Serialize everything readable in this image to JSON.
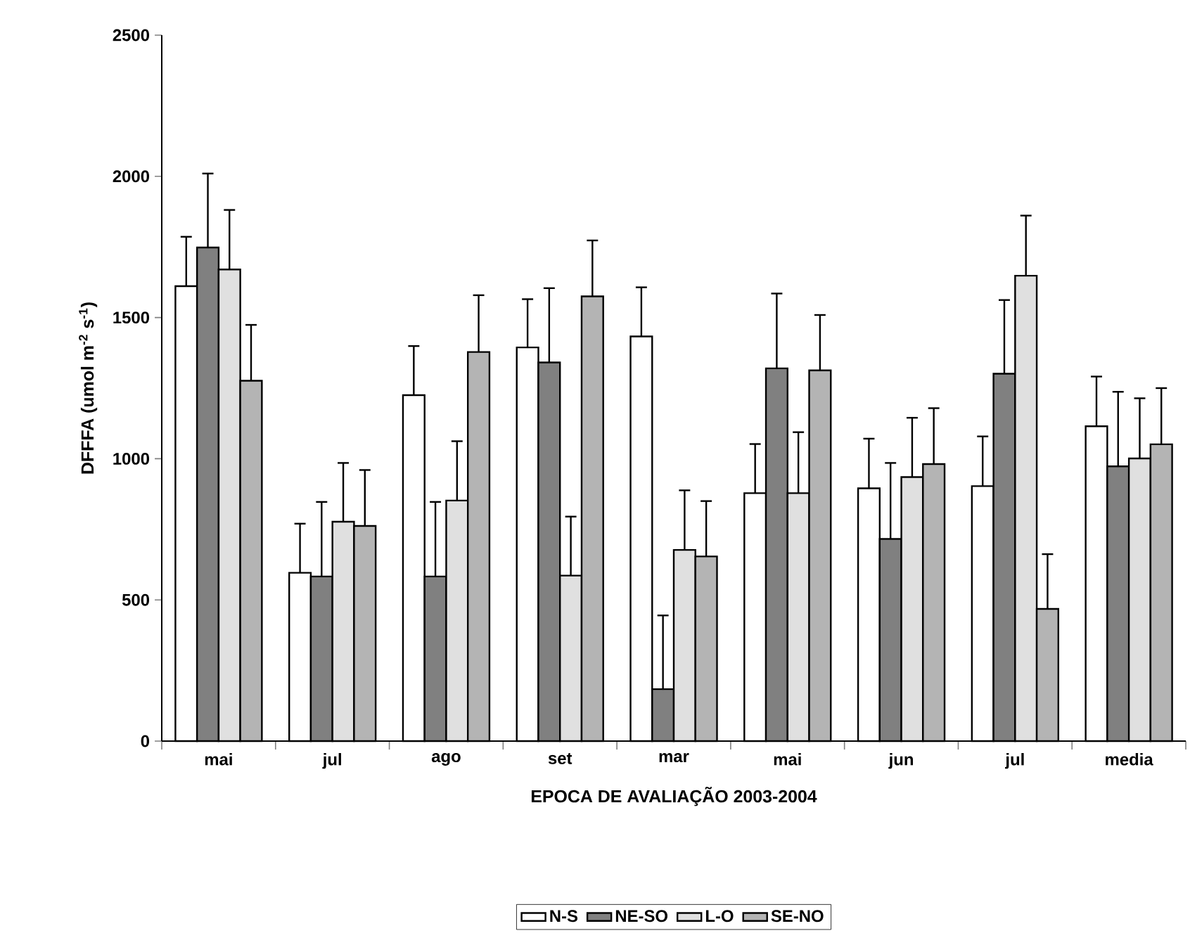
{
  "chart_data": {
    "type": "bar",
    "xlabel": "EPOCA DE AVALIAÇÃO 2003-2004",
    "ylabel": "DFFFA (umol m$^{-2}$ s$^{-1}$)",
    "categories": [
      "mai",
      "jul",
      "ago",
      "set",
      "mar",
      "mai",
      "jun",
      "jul",
      "media"
    ],
    "ylim": [
      0,
      2500
    ],
    "yticks": [
      0,
      500,
      1000,
      1500,
      2000,
      2500
    ],
    "grid": false,
    "legend": "bottom",
    "series": [
      {
        "name": "N-S",
        "color": "#ffffff",
        "values": [
          1611,
          596,
          1225,
          1394,
          1433,
          878,
          895,
          903,
          1115
        ],
        "errors": [
          [
            1611,
            1786
          ],
          [
            596,
            770
          ],
          [
            1225,
            1399
          ],
          [
            1394,
            1565
          ],
          [
            1433,
            1607
          ],
          [
            878,
            1052
          ],
          [
            895,
            1071
          ],
          [
            903,
            1079
          ],
          [
            1115,
            1291
          ]
        ]
      },
      {
        "name": "NE-SO",
        "color": "#808080",
        "values": [
          1748,
          583,
          583,
          1341,
          184,
          1320,
          716,
          1301,
          973
        ],
        "errors": [
          [
            1748,
            2010
          ],
          [
            583,
            847
          ],
          [
            583,
            847
          ],
          [
            1341,
            1604
          ],
          [
            184,
            445
          ],
          [
            1320,
            1585
          ],
          [
            716,
            985
          ],
          [
            1301,
            1562
          ],
          [
            973,
            1237
          ]
        ]
      },
      {
        "name": "L-O",
        "color": "#e0e0e0",
        "values": [
          1670,
          777,
          852,
          586,
          677,
          878,
          935,
          1648,
          1001
        ],
        "errors": [
          [
            1670,
            1881
          ],
          [
            777,
            985
          ],
          [
            852,
            1062
          ],
          [
            586,
            795
          ],
          [
            677,
            888
          ],
          [
            878,
            1094
          ],
          [
            935,
            1145
          ],
          [
            1648,
            1861
          ],
          [
            1001,
            1214
          ]
        ]
      },
      {
        "name": "SE-NO",
        "color": "#b4b4b4",
        "values": [
          1276,
          762,
          1378,
          1575,
          654,
          1313,
          981,
          468,
          1051
        ],
        "errors": [
          [
            1276,
            1474
          ],
          [
            762,
            960
          ],
          [
            1378,
            1579
          ],
          [
            1575,
            1773
          ],
          [
            654,
            850
          ],
          [
            1313,
            1509
          ],
          [
            981,
            1179
          ],
          [
            468,
            662
          ],
          [
            1051,
            1250
          ]
        ]
      }
    ]
  }
}
